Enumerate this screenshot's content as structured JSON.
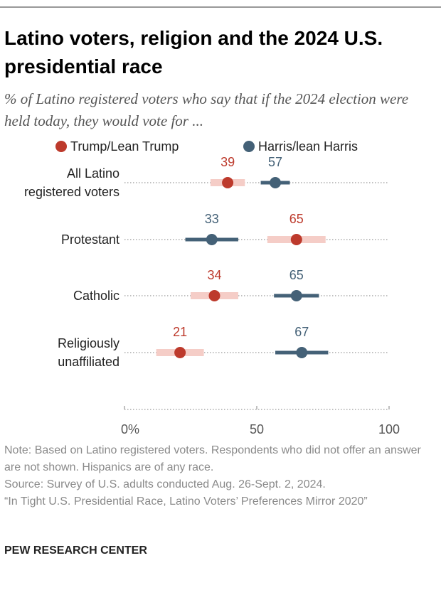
{
  "chart_data": {
    "type": "dot_range",
    "title": "Latino voters, religion and the 2024 U.S. presidential race",
    "subtitle": "% of Latino registered voters who say that if the 2024 election were held today, they would vote for ...",
    "categories": [
      "All Latino registered voters",
      "Protestant",
      "Catholic",
      "Religiously unaffiliated"
    ],
    "series": [
      {
        "name": "Trump/Lean Trump",
        "color": "#bd3a2c",
        "range_color": "#f5cdc7",
        "values": [
          39,
          65,
          34,
          21
        ],
        "errors": [
          6.5,
          11,
          9,
          9
        ]
      },
      {
        "name": "Harris/lean Harris",
        "color": "#446177",
        "range_color": "#446177",
        "values": [
          57,
          33,
          65,
          67
        ],
        "errors": [
          5.5,
          10,
          8.5,
          10
        ]
      }
    ],
    "xlim": [
      0,
      100
    ],
    "xticks": [
      {
        "value": 0,
        "label": "0%"
      },
      50,
      100
    ],
    "notes": [
      "Note: Based on Latino registered voters. Respondents who did not offer an answer are not shown. Hispanics are of any race.",
      "Source: Survey of U.S. adults conducted Aug. 26-Sept. 2, 2024.",
      "“In Tight U.S. Presidential Race, Latino Voters’ Preferences Mirror 2020”"
    ],
    "publisher": "PEW RESEARCH CENTER"
  }
}
